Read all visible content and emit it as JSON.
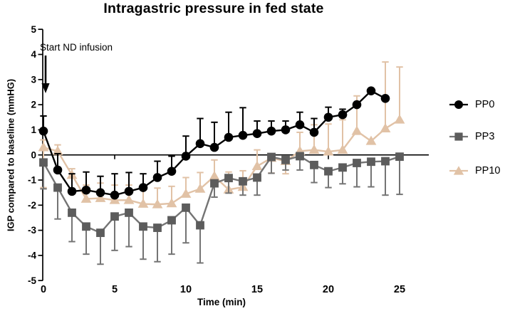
{
  "chart_data": {
    "type": "line",
    "title": "Intragastric pressure in fed state",
    "xlabel": "Time (min)",
    "ylabel": "IGP compared to baseline (mmHG)",
    "annotation": "Start ND infusion",
    "annotation_arrow_x": 0,
    "xlim": [
      0,
      25.6
    ],
    "ylim": [
      -5,
      5
    ],
    "x_ticks": [
      0,
      5,
      10,
      15,
      20,
      25
    ],
    "y_ticks": [
      5,
      4,
      3,
      2,
      1,
      0,
      -1,
      -2,
      -3,
      -4,
      -5
    ],
    "grid": false,
    "legend_position": "right",
    "baseline_at_zero": true,
    "series": [
      {
        "name": "PP0",
        "marker": "circle",
        "color": "#000000",
        "x": [
          0,
          1,
          2,
          3,
          4,
          5,
          6,
          7,
          8,
          9,
          10,
          11,
          12,
          13,
          14,
          15,
          16,
          17,
          18,
          19,
          20,
          21,
          22,
          23,
          24
        ],
        "y": [
          0.95,
          -0.6,
          -1.45,
          -1.4,
          -1.5,
          -1.6,
          -1.45,
          -1.3,
          -0.9,
          -0.65,
          -0.05,
          0.45,
          0.3,
          0.7,
          0.78,
          0.85,
          0.95,
          1.0,
          1.2,
          0.9,
          1.5,
          1.6,
          2.0,
          2.55,
          2.25
        ],
        "err_up": [
          0.6,
          0.65,
          0.7,
          0.72,
          0.65,
          0.85,
          0.75,
          0.55,
          0.65,
          0.6,
          0.8,
          1.0,
          1.0,
          1.0,
          1.1,
          0.5,
          0.4,
          0.35,
          0.5,
          0.55,
          0.4,
          0.22,
          0,
          0,
          0
        ],
        "err_down": [
          0,
          0,
          0,
          0,
          0,
          0,
          0,
          0,
          0,
          0,
          0,
          0,
          0,
          0,
          0,
          0,
          0,
          0,
          0,
          0,
          0,
          0,
          0,
          0,
          0
        ]
      },
      {
        "name": "PP3",
        "marker": "square",
        "color": "#5c5c5c",
        "line_color": "#747474",
        "x": [
          0,
          1,
          2,
          3,
          4,
          5,
          6,
          7,
          8,
          9,
          10,
          11,
          12,
          13,
          14,
          15,
          16,
          17,
          18,
          19,
          20,
          21,
          22,
          23,
          24,
          25
        ],
        "y": [
          -0.3,
          -1.3,
          -2.3,
          -2.85,
          -3.1,
          -2.45,
          -2.3,
          -2.85,
          -2.9,
          -2.6,
          -2.1,
          -2.8,
          -1.13,
          -0.92,
          -1.05,
          -0.9,
          -0.08,
          -0.2,
          -0.05,
          -0.4,
          -0.65,
          -0.5,
          -0.32,
          -0.27,
          -0.25,
          -0.07
        ],
        "err_up": [
          0,
          0,
          0,
          0,
          0,
          0,
          0,
          0,
          0,
          0,
          0,
          0,
          0,
          0,
          0,
          0,
          0,
          0,
          0,
          0,
          0,
          0,
          0,
          0,
          0,
          0
        ],
        "err_down": [
          1.05,
          1.25,
          1.15,
          1.1,
          1.25,
          1.35,
          1.35,
          1.3,
          1.35,
          1.35,
          1.4,
          1.5,
          0.55,
          0.6,
          0.55,
          0.7,
          0.65,
          0.4,
          0.55,
          0.7,
          0.65,
          0.65,
          0.95,
          1.0,
          1.35,
          1.5
        ]
      },
      {
        "name": "PP10",
        "marker": "triangle",
        "color": "#e1c2a6",
        "x": [
          0,
          1,
          2,
          3,
          4,
          5,
          6,
          7,
          8,
          9,
          10,
          11,
          12,
          13,
          14,
          15,
          16,
          17,
          18,
          19,
          20,
          21,
          22,
          23,
          24,
          25
        ],
        "y": [
          0.3,
          0.15,
          -0.8,
          -1.75,
          -1.72,
          -1.8,
          -1.8,
          -1.95,
          -1.97,
          -1.93,
          -1.55,
          -1.35,
          -0.85,
          -1.38,
          -1.28,
          -0.45,
          -0.12,
          -0.25,
          0.15,
          0.2,
          0.13,
          0.2,
          0.95,
          0.55,
          1.05,
          1.4
        ],
        "err_up": [
          0.3,
          0.25,
          0.25,
          0.55,
          0.6,
          0.6,
          0.6,
          0.6,
          0.65,
          0.68,
          0.65,
          0.65,
          0.65,
          0.7,
          0.65,
          0.65,
          0,
          0,
          0.75,
          1.0,
          1.1,
          1.2,
          1.4,
          0,
          2.65,
          2.1
        ],
        "err_down": [
          1.6,
          0,
          0,
          0,
          0,
          0,
          0,
          0,
          0,
          0,
          0,
          0,
          0,
          0,
          0,
          0,
          0.6,
          0.5,
          0,
          0,
          0,
          0,
          0,
          0,
          0,
          0
        ]
      }
    ]
  }
}
